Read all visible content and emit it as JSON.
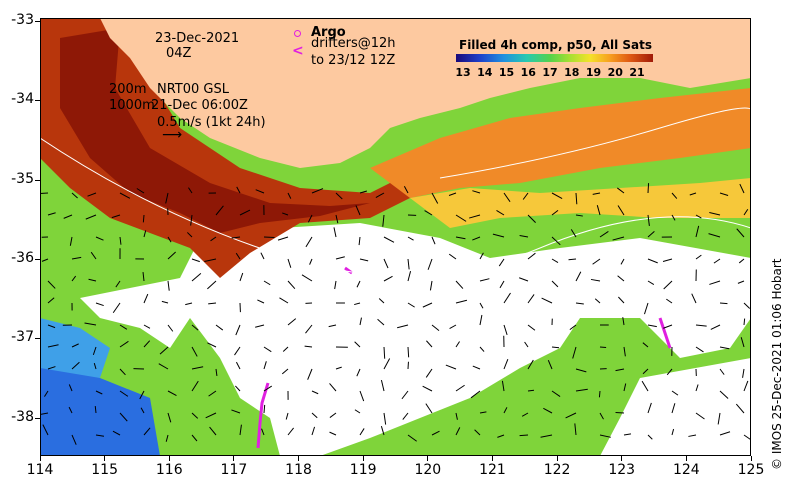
{
  "map": {
    "date_label": "23-Dec-2021",
    "time_label": "04Z",
    "isobath_200": "200m",
    "isobath_1000": "1000m",
    "altimetry_label": "NRT00 GSL",
    "altimetry_time": "21-Dec 06:00Z",
    "vector_scale": "0.5m/s (1kt 24h)",
    "argo_label": "Argo",
    "drifters_label": "drifters@12h",
    "drifters_to": "to 23/12 12Z",
    "credit": "© IMOS 25-Dec-2021 01:06 Hobart",
    "legend_title": "Filled 4h comp, p50, All Sats",
    "colorbar_ticks": [
      "13",
      "14",
      "15",
      "16",
      "17",
      "18",
      "19",
      "20",
      "21"
    ],
    "x_ticks": [
      "114",
      "115",
      "116",
      "117",
      "118",
      "119",
      "120",
      "121",
      "122",
      "123",
      "124",
      "125"
    ],
    "y_ticks": [
      "-33",
      "-34",
      "-35",
      "-36",
      "-37",
      "-38"
    ],
    "colors": {
      "land": "#fdc9a0",
      "warm": "#b02a08",
      "mid": "#f0a030",
      "cool": "#5fd040",
      "cold": "#1c5ae0",
      "argo": "#e020e0"
    }
  }
}
